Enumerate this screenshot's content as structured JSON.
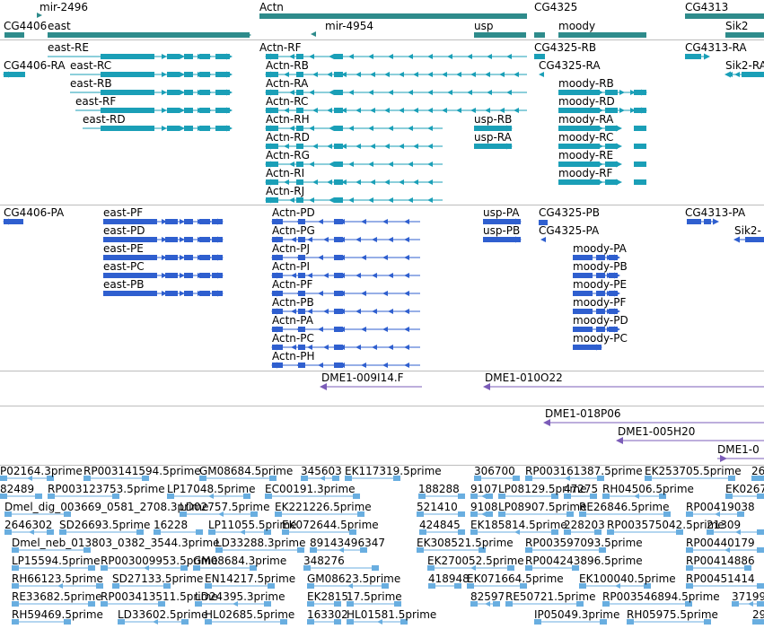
{
  "colors": {
    "gene": "#2e8b8b",
    "transcript": "#1a9fb7",
    "protein": "#2f5fcf",
    "clone": "#7b5cb8",
    "est": "#69aee0",
    "separator": "#bdbdbd"
  },
  "tracks": {
    "genes": [
      "mir-2496",
      "east",
      "CG4406",
      "Actn",
      "mir-4954",
      "CG4325",
      "usp",
      "moody",
      "CG4313",
      "Sik2"
    ],
    "transcripts": [
      "east-RE",
      "CG4406-RA",
      "east-RC",
      "east-RB",
      "east-RF",
      "east-RD",
      "Actn-RF",
      "Actn-RB",
      "Actn-RA",
      "Actn-RC",
      "Actn-RH",
      "Actn-RD",
      "Actn-RG",
      "Actn-RI",
      "Actn-RJ",
      "usp-RB",
      "usp-RA",
      "CG4325-RB",
      "CG4325-RA",
      "moody-RB",
      "moody-RD",
      "moody-RA",
      "moody-RC",
      "moody-RE",
      "moody-RF",
      "CG4313-RA",
      "Sik2-RA"
    ],
    "proteins": [
      "CG4406-PA",
      "east-PF",
      "east-PD",
      "east-PE",
      "east-PC",
      "east-PB",
      "Actn-PD",
      "Actn-PG",
      "Actn-PJ",
      "Actn-PI",
      "Actn-PF",
      "Actn-PB",
      "Actn-PA",
      "Actn-PC",
      "Actn-PH",
      "usp-PA",
      "usp-PB",
      "CG4325-PB",
      "CG4325-PA",
      "moody-PA",
      "moody-PB",
      "moody-PE",
      "moody-PF",
      "moody-PD",
      "moody-PC",
      "CG4313-PA",
      "Sik2-"
    ],
    "clones_a": [
      "DME1-009I14.F",
      "DME1-010O22"
    ],
    "clones_b": [
      "DME1-018P06",
      "DME1-005H20",
      "DME1-0"
    ],
    "ests": [
      "P02164.3prime",
      "RP003141594.5prime",
      "GM08684.5prime",
      "345603",
      "EK117319.5prime",
      "306700",
      "RP003161387.5prime",
      "EK253705.5prime",
      "26",
      "82489",
      "RP003123753.5prime",
      "LP17048.5prime",
      "EC00191.3prime",
      "188288",
      "9107",
      "LP08129.5prime",
      "47275",
      "RH04506.5prime",
      "EK0267",
      "Dmel_dig_003669_0581_2708.3prime",
      "LD02757.5prime",
      "EK221226.5prime",
      "521410",
      "9108",
      "LP08907.5prime",
      "RE26846.5prime",
      "RP00419038",
      "2646302",
      "SD26693.5prime",
      "16228",
      "LP11055.5prime",
      "EK072644.5prime",
      "424845",
      "EK185814.5prime",
      "228203",
      "RP003575042.5prime",
      "21309",
      "Dmel_neb_013803_0382_3544.3prime",
      "LD33288.3prime",
      "89143496347",
      "EK308521.5prime",
      "RP003597093.5prime",
      "RP00440179",
      "LP15594.5prime",
      "RP003009953.5prime",
      "GM08684.3prime",
      "348276",
      "EK270052.5prime",
      "RP004243896.5prime",
      "RP00414886",
      "RH66123.5prime",
      "SD27133.5prime",
      "EN14217.5prime",
      "GM08623.5prime",
      "418948",
      "EK071664.5prime",
      "EK100040.5prime",
      "RP00451414",
      "RE33682.5prime",
      "RP003413511.5prime",
      "LD24395.3prime",
      "EK2815",
      "17.5prime",
      "82597",
      "RE50721.5prime",
      "RP003546894.5prime",
      "37199",
      "RH59469.5prime",
      "LD33602.5prime",
      "HL02685.5prime",
      "163302",
      "HL01581.5prime",
      "IP05049.3prime",
      "RH05975.5prime",
      "29"
    ]
  }
}
